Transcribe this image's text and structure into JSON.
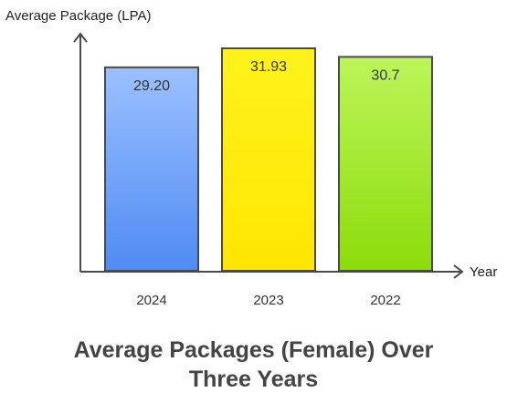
{
  "chart_data": {
    "type": "bar",
    "title_lines": [
      "Average Packages (Female) Over",
      "Three Years"
    ],
    "xlabel": "Year",
    "ylabel": "Average Package (LPA)",
    "categories": [
      "2024",
      "2023",
      "2022"
    ],
    "values": [
      29.2,
      31.93,
      30.7
    ],
    "value_labels": [
      "29.20",
      "31.93",
      "30.7"
    ],
    "ylim": [
      0,
      33.5
    ],
    "grid": false,
    "legend": "none",
    "bar_colors": [
      {
        "top": "#9bc0ff",
        "bottom": "#4f8bf3"
      },
      {
        "top": "#fff21c",
        "bottom": "#ffe600"
      },
      {
        "top": "#bdf55a",
        "bottom": "#8bdc0a"
      }
    ],
    "outline_color": "#4a4a4a",
    "axis_color": "#4a4a4a"
  }
}
